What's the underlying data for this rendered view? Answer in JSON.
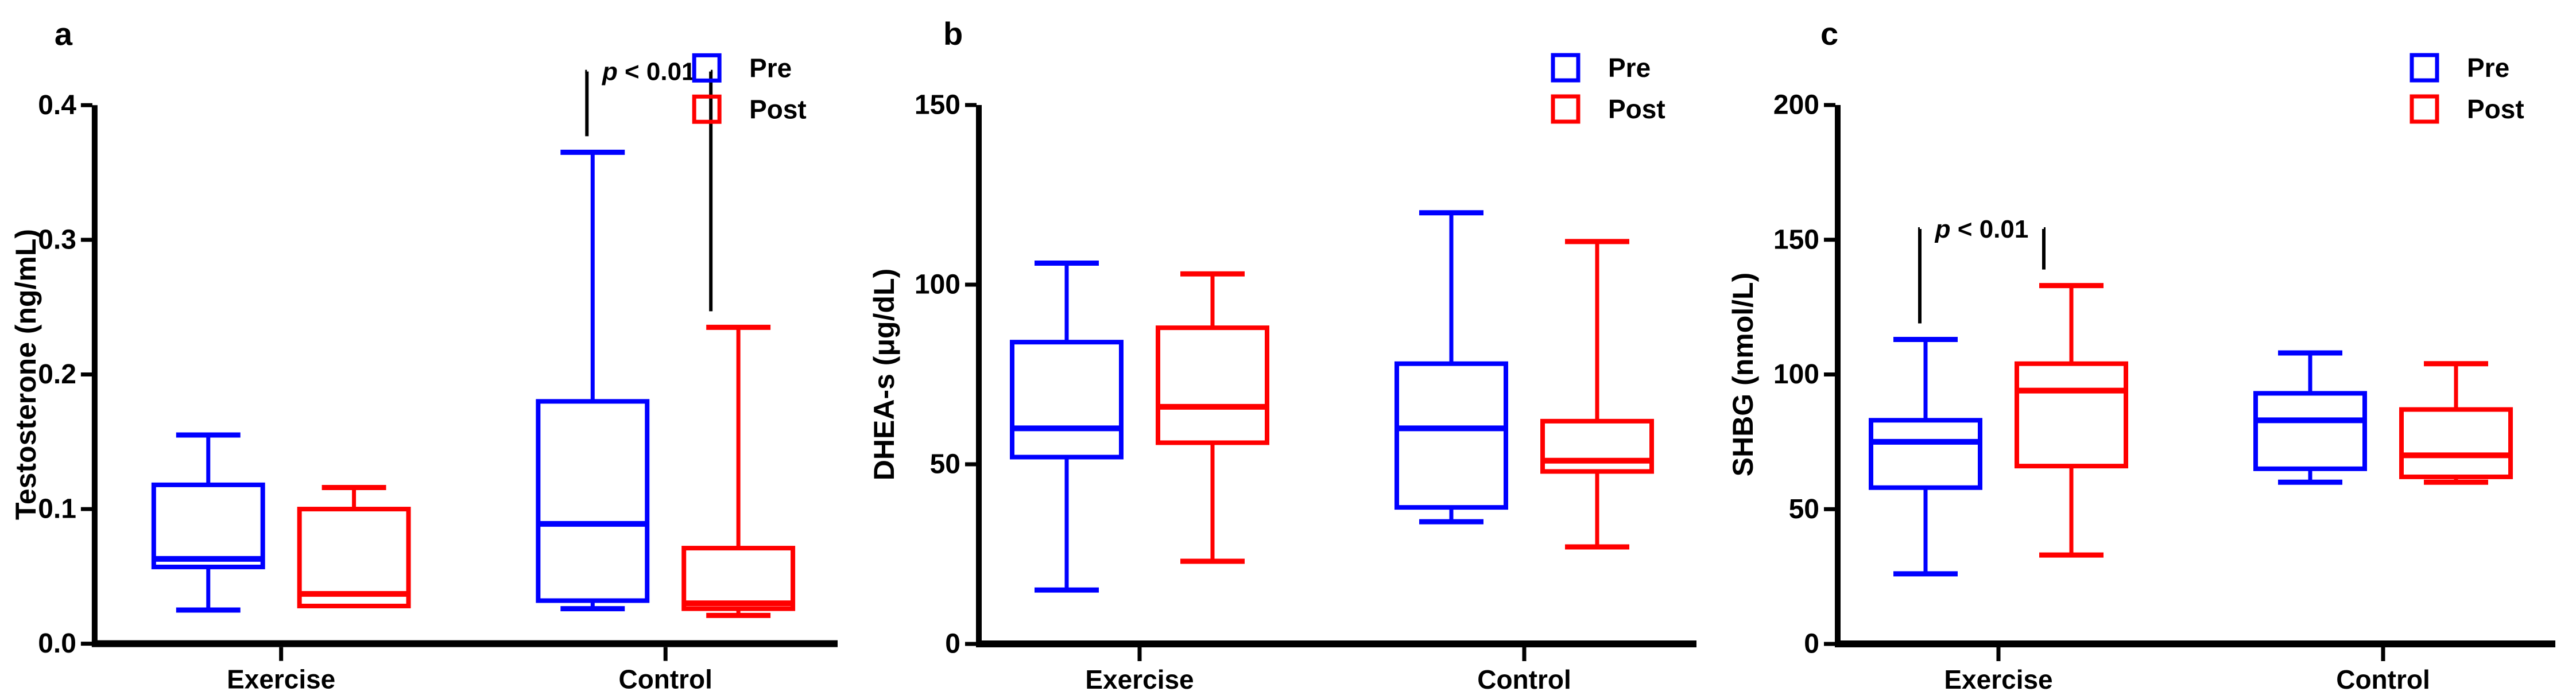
{
  "figure": {
    "background": "#ffffff",
    "colors": {
      "pre": "#0000ff",
      "post": "#ff0000",
      "axis": "#000000",
      "text": "#000000"
    },
    "legend": {
      "position": "top-right",
      "items": [
        {
          "label": "Pre",
          "color": "#0000ff",
          "swatch": "open-square"
        },
        {
          "label": "Post",
          "color": "#ff0000",
          "swatch": "open-square"
        }
      ]
    },
    "groups": [
      "Exercise",
      "Control"
    ],
    "series_names": [
      "Pre",
      "Post"
    ]
  },
  "chart_data": [
    {
      "type": "boxplot",
      "panel_label": "a",
      "ylabel": "Testosterone (ng/mL)",
      "xlabel": "",
      "ylim": [
        0,
        0.4
      ],
      "yticks": [
        0,
        0.1,
        0.2,
        0.3,
        0.4
      ],
      "ytick_labels": [
        "0.0",
        "0.1",
        "0.2",
        "0.3",
        "0.4"
      ],
      "categories": [
        "Exercise",
        "Control"
      ],
      "grid": false,
      "series": [
        {
          "name": "Pre",
          "color": "#0000ff",
          "boxes": [
            {
              "min": 0.025,
              "q1": 0.057,
              "median": 0.063,
              "q3": 0.118,
              "max": 0.155
            },
            {
              "min": 0.026,
              "q1": 0.032,
              "median": 0.089,
              "q3": 0.18,
              "max": 0.365
            }
          ]
        },
        {
          "name": "Post",
          "color": "#ff0000",
          "boxes": [
            {
              "min": 0.028,
              "q1": 0.028,
              "median": 0.037,
              "q3": 0.1,
              "max": 0.116
            },
            {
              "min": 0.021,
              "q1": 0.026,
              "median": 0.03,
              "q3": 0.071,
              "max": 0.235
            }
          ]
        }
      ],
      "annotation": {
        "label": "p < 0.01",
        "category": "Control",
        "between": [
          "Pre",
          "Post"
        ],
        "top_value": 0.425
      }
    },
    {
      "type": "boxplot",
      "panel_label": "b",
      "ylabel": "DHEA-s  (μg/dL)",
      "xlabel": "",
      "ylim": [
        0,
        150
      ],
      "yticks": [
        0,
        50,
        100,
        150
      ],
      "ytick_labels": [
        "0",
        "50",
        "100",
        "150"
      ],
      "categories": [
        "Exercise",
        "Control"
      ],
      "grid": false,
      "series": [
        {
          "name": "Pre",
          "color": "#0000ff",
          "boxes": [
            {
              "min": 15,
              "q1": 52,
              "median": 60,
              "q3": 84,
              "max": 106
            },
            {
              "min": 34,
              "q1": 38,
              "median": 60,
              "q3": 78,
              "max": 120
            }
          ]
        },
        {
          "name": "Post",
          "color": "#ff0000",
          "boxes": [
            {
              "min": 23,
              "q1": 56,
              "median": 66,
              "q3": 88,
              "max": 103
            },
            {
              "min": 27,
              "q1": 48,
              "median": 51,
              "q3": 62,
              "max": 112
            }
          ]
        }
      ],
      "annotation": null
    },
    {
      "type": "boxplot",
      "panel_label": "c",
      "ylabel": "SHBG (nmol/L)",
      "xlabel": "",
      "ylim": [
        0,
        200
      ],
      "yticks": [
        0,
        50,
        100,
        150,
        200
      ],
      "ytick_labels": [
        "0",
        "50",
        "100",
        "150",
        "200"
      ],
      "categories": [
        "Exercise",
        "Control"
      ],
      "grid": false,
      "series": [
        {
          "name": "Pre",
          "color": "#0000ff",
          "boxes": [
            {
              "min": 26,
              "q1": 58,
              "median": 75,
              "q3": 83,
              "max": 113
            },
            {
              "min": 60,
              "q1": 65,
              "median": 83,
              "q3": 93,
              "max": 108
            }
          ]
        },
        {
          "name": "Post",
          "color": "#ff0000",
          "boxes": [
            {
              "min": 33,
              "q1": 66,
              "median": 94,
              "q3": 104,
              "max": 133
            },
            {
              "min": 60,
              "q1": 62,
              "median": 70,
              "q3": 87,
              "max": 104
            }
          ]
        }
      ],
      "annotation": {
        "label": "p < 0.01",
        "category": "Exercise",
        "between": [
          "Pre",
          "Post"
        ],
        "top_value": 154
      }
    }
  ]
}
